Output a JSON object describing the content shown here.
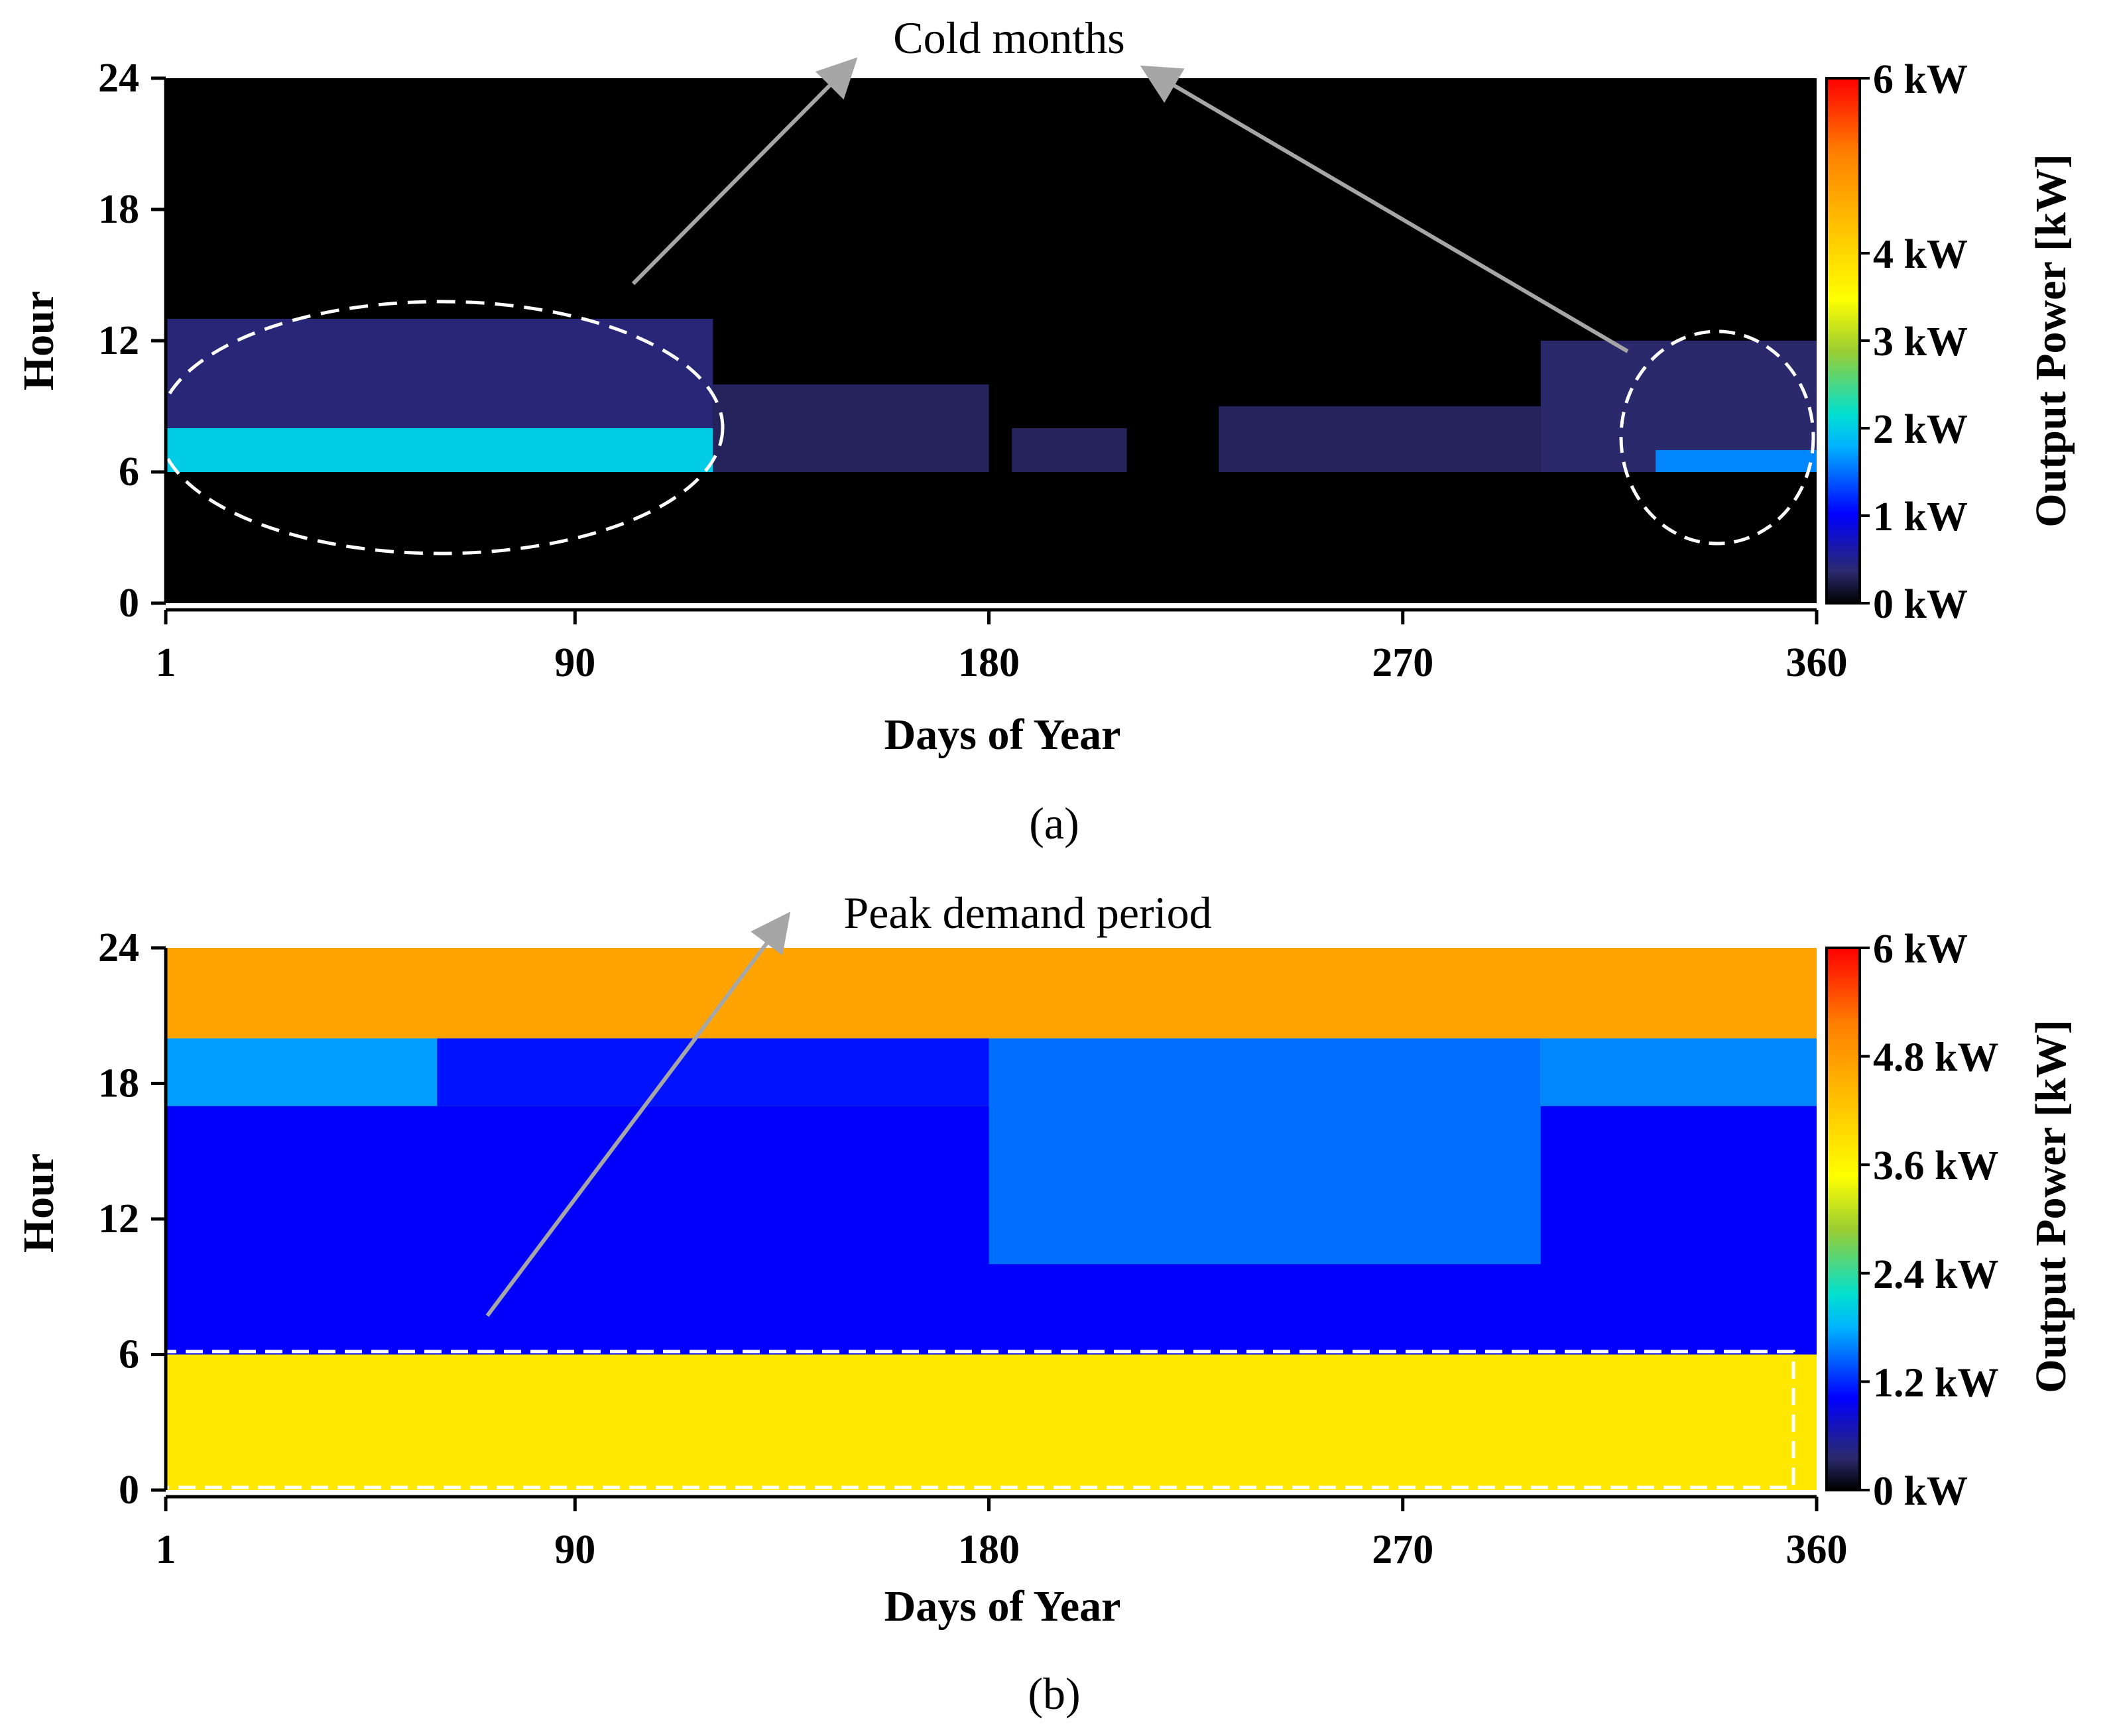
{
  "chart_data": [
    {
      "type": "heatmap",
      "panel_label": "(a)",
      "xlabel": "Days of Year",
      "ylabel": "Hour",
      "xlim": [
        1,
        360
      ],
      "ylim": [
        0,
        24
      ],
      "x_ticks": [
        "1",
        "90",
        "180",
        "270",
        "360"
      ],
      "y_ticks": [
        "0",
        "6",
        "12",
        "18",
        "24"
      ],
      "colorbar": {
        "label": "Output Power [kW]",
        "range": [
          0,
          6
        ],
        "tick_values": [
          0,
          1,
          2,
          3,
          4,
          6
        ],
        "tick_labels": [
          "0 kW",
          "1 kW",
          "2 kW",
          "3 kW",
          "4 kW",
          "6 kW"
        ]
      },
      "annotation": "Cold months",
      "bands": [
        {
          "from_day": 1,
          "to_day": 120,
          "from_hour": 6,
          "to_hour": 13,
          "kw": 0.4
        },
        {
          "from_day": 1,
          "to_day": 120,
          "from_hour": 6,
          "to_hour": 8,
          "kw": 2.0
        },
        {
          "from_day": 120,
          "to_day": 180,
          "from_hour": 6,
          "to_hour": 10,
          "kw": 0.3
        },
        {
          "from_day": 185,
          "to_day": 210,
          "from_hour": 6,
          "to_hour": 8,
          "kw": 0.3
        },
        {
          "from_day": 230,
          "to_day": 300,
          "from_hour": 6,
          "to_hour": 9,
          "kw": 0.3
        },
        {
          "from_day": 300,
          "to_day": 360,
          "from_hour": 6,
          "to_hour": 12,
          "kw": 0.35
        },
        {
          "from_day": 325,
          "to_day": 360,
          "from_hour": 6,
          "to_hour": 7,
          "kw": 1.6
        }
      ]
    },
    {
      "type": "heatmap",
      "panel_label": "(b)",
      "xlabel": "Days of Year",
      "ylabel": "Hour",
      "xlim": [
        1,
        360
      ],
      "ylim": [
        0,
        24
      ],
      "x_ticks": [
        "1",
        "90",
        "180",
        "270",
        "360"
      ],
      "y_ticks": [
        "0",
        "6",
        "12",
        "18",
        "24"
      ],
      "colorbar": {
        "label": "Output Power [kW]",
        "range": [
          0,
          6
        ],
        "tick_values": [
          0,
          1.2,
          2.4,
          3.6,
          4.8,
          6
        ],
        "tick_labels": [
          "0 kW",
          "1.2 kW",
          "2.4 kW",
          "3.6 kW",
          "4.8 kW",
          "6 kW"
        ]
      },
      "annotation": "Peak demand period",
      "bands": [
        {
          "from_day": 1,
          "to_day": 360,
          "from_hour": 0,
          "to_hour": 6,
          "kw": 3.8
        },
        {
          "from_day": 1,
          "to_day": 360,
          "from_hour": 6,
          "to_hour": 17,
          "kw": 1.0
        },
        {
          "from_day": 1,
          "to_day": 60,
          "from_hour": 17,
          "to_hour": 20,
          "kw": 1.7
        },
        {
          "from_day": 60,
          "to_day": 180,
          "from_hour": 17,
          "to_hour": 20,
          "kw": 1.1
        },
        {
          "from_day": 180,
          "to_day": 300,
          "from_hour": 10,
          "to_hour": 20,
          "kw": 1.5
        },
        {
          "from_day": 300,
          "to_day": 360,
          "from_hour": 17,
          "to_hour": 20,
          "kw": 1.6
        },
        {
          "from_day": 1,
          "to_day": 360,
          "from_hour": 20,
          "to_hour": 24,
          "kw": 4.7
        }
      ]
    }
  ],
  "colors": {
    "text": "#000000",
    "arrow": "#a6a6a6",
    "dash": "#ffffff",
    "background_a": "#000000"
  }
}
